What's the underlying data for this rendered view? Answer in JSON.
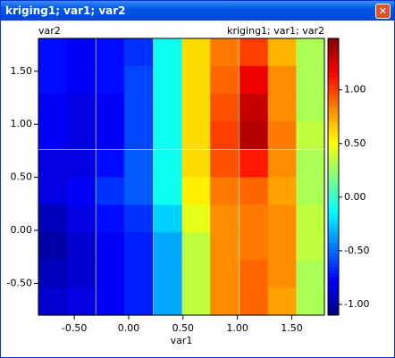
{
  "window": {
    "title": "kriging1; var1; var2"
  },
  "chart_data": {
    "type": "heatmap",
    "title": "kriging1; var1; var2",
    "x_label": "var1",
    "y_label": "var2",
    "colormap": "jet",
    "x": [
      -0.7,
      -0.44,
      -0.17,
      0.09,
      0.36,
      0.62,
      0.88,
      1.15,
      1.41,
      1.67
    ],
    "y": [
      1.68,
      1.42,
      1.16,
      0.9,
      0.63,
      0.37,
      0.11,
      -0.15,
      -0.41,
      -0.67
    ],
    "z": [
      [
        -0.75,
        -0.8,
        -0.75,
        -0.65,
        -0.1,
        0.6,
        0.85,
        1.0,
        0.7,
        0.3
      ],
      [
        -0.75,
        -0.8,
        -0.75,
        -0.6,
        -0.1,
        0.6,
        0.9,
        1.2,
        0.8,
        0.3
      ],
      [
        -0.8,
        -0.85,
        -0.8,
        -0.6,
        -0.1,
        0.6,
        0.95,
        1.3,
        0.8,
        0.3
      ],
      [
        -0.8,
        -0.85,
        -0.8,
        -0.6,
        -0.1,
        0.6,
        1.0,
        1.35,
        0.85,
        0.35
      ],
      [
        -0.85,
        -0.85,
        -0.75,
        -0.55,
        -0.1,
        0.6,
        0.95,
        1.1,
        0.8,
        0.3
      ],
      [
        -0.85,
        -0.8,
        -0.65,
        -0.55,
        -0.1,
        0.55,
        0.85,
        0.9,
        0.75,
        0.3
      ],
      [
        -0.95,
        -0.85,
        -0.75,
        -0.65,
        -0.25,
        0.45,
        0.8,
        0.85,
        0.8,
        0.35
      ],
      [
        -1.0,
        -0.9,
        -0.8,
        -0.7,
        -0.35,
        0.35,
        0.8,
        0.85,
        0.8,
        0.35
      ],
      [
        -0.95,
        -0.9,
        -0.8,
        -0.7,
        -0.35,
        0.35,
        0.8,
        0.9,
        0.8,
        0.3
      ],
      [
        -0.9,
        -0.85,
        -0.8,
        -0.7,
        -0.35,
        0.35,
        0.8,
        0.9,
        0.75,
        0.3
      ]
    ],
    "xlim": [
      -0.83,
      1.8
    ],
    "xticks": [
      {
        "value": -0.5,
        "label": "-0.50"
      },
      {
        "value": 0,
        "label": "0.00"
      },
      {
        "value": 0.5,
        "label": "0.50"
      },
      {
        "value": 1,
        "label": "1.00"
      },
      {
        "value": 1.5,
        "label": "1.50"
      }
    ],
    "ylim": [
      -0.8,
      1.81
    ],
    "yticks": [
      {
        "value": -0.5,
        "label": "-0.50"
      },
      {
        "value": 0,
        "label": "0.00"
      },
      {
        "value": 0.5,
        "label": "0.50"
      },
      {
        "value": 1,
        "label": "1.00"
      },
      {
        "value": 1.5,
        "label": "1.50"
      }
    ],
    "zlim": [
      -1.1,
      1.48
    ],
    "zticks": [
      {
        "value": -1,
        "label": "-1.00"
      },
      {
        "value": -0.5,
        "label": "-0.50"
      },
      {
        "value": 0,
        "label": "0.00"
      },
      {
        "value": 0.5,
        "label": "0.50"
      },
      {
        "value": 1,
        "label": "1.00"
      }
    ]
  }
}
